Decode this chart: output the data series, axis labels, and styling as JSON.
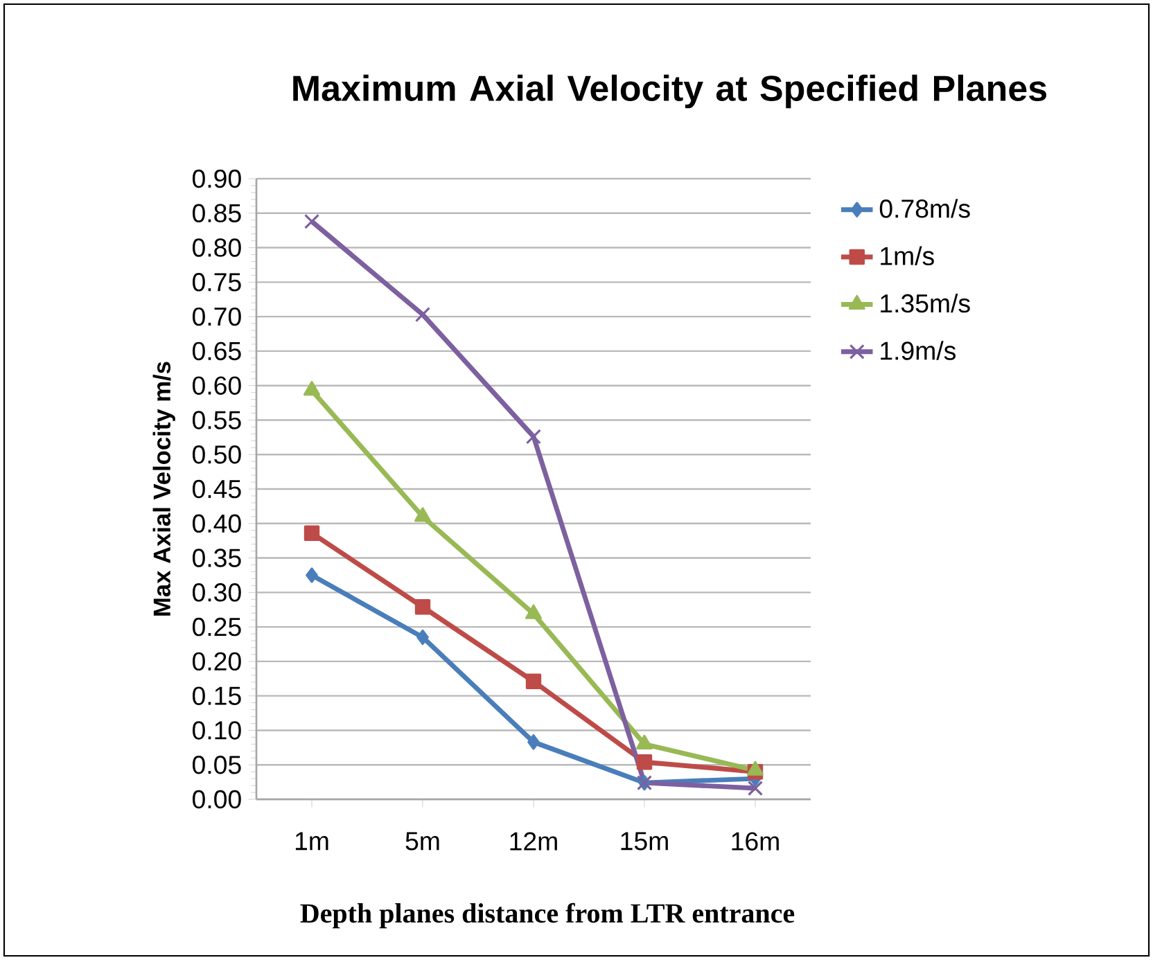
{
  "chart_data": {
    "type": "line",
    "title": "Maximum Axial Velocity at Specified Planes",
    "xlabel": "Depth planes distance from LTR entrance",
    "ylabel": "Max Axial Velocity m/s",
    "categories": [
      "1m",
      "5m",
      "12m",
      "15m",
      "16m"
    ],
    "series": [
      {
        "name": "0.78m/s",
        "color": "#4a7ebb",
        "marker": "diamond",
        "values": [
          0.325,
          0.235,
          0.083,
          0.024,
          0.03
        ]
      },
      {
        "name": "1m/s",
        "color": "#be4b48",
        "marker": "square",
        "values": [
          0.386,
          0.279,
          0.171,
          0.054,
          0.04
        ]
      },
      {
        "name": "1.35m/s",
        "color": "#98b954",
        "marker": "triangle",
        "values": [
          0.593,
          0.41,
          0.269,
          0.08,
          0.042
        ]
      },
      {
        "name": "1.9m/s",
        "color": "#7d60a0",
        "marker": "cross",
        "values": [
          0.838,
          0.703,
          0.526,
          0.024,
          0.016
        ]
      }
    ],
    "ylim": [
      0,
      0.9
    ],
    "yticks": [
      {
        "value": 0,
        "label": "0.00"
      },
      {
        "value": 0.05,
        "label": "0.05"
      },
      {
        "value": 0.1,
        "label": "0.10"
      },
      {
        "value": 0.15,
        "label": "0.15"
      },
      {
        "value": 0.2,
        "label": "0.20"
      },
      {
        "value": 0.25,
        "label": "0.25"
      },
      {
        "value": 0.3,
        "label": "0.30"
      },
      {
        "value": 0.35,
        "label": "0.35"
      },
      {
        "value": 0.4,
        "label": "0.40"
      },
      {
        "value": 0.45,
        "label": "0.45"
      },
      {
        "value": 0.5,
        "label": "0.50"
      },
      {
        "value": 0.55,
        "label": "0.55"
      },
      {
        "value": 0.6,
        "label": "0.60"
      },
      {
        "value": 0.65,
        "label": "0.65"
      },
      {
        "value": 0.7,
        "label": "0.70"
      },
      {
        "value": 0.75,
        "label": "0.75"
      },
      {
        "value": 0.8,
        "label": "0.80"
      },
      {
        "value": 0.85,
        "label": "0.85"
      },
      {
        "value": 0.9,
        "label": "0.90"
      }
    ],
    "grid": "y",
    "legend": "right",
    "line_style": "solid"
  }
}
